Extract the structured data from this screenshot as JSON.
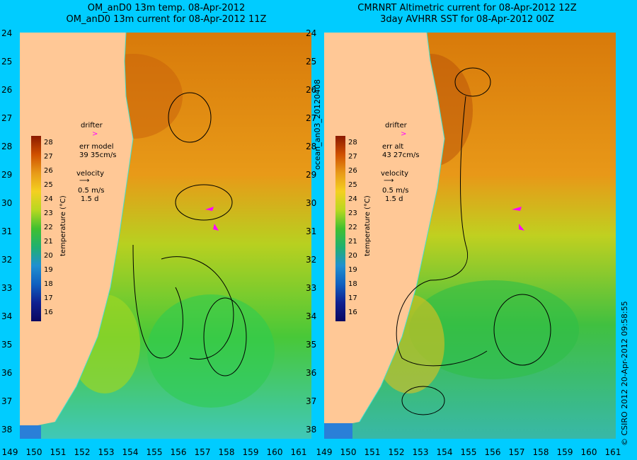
{
  "left_panel": {
    "title_line1": "OM_anD0 13m temp. 08-Apr-2012",
    "title_line2": "OM_anD0 13m current for 08-Apr-2012 11Z",
    "legend": {
      "drifter_label": "drifter",
      "err_label": "err model",
      "err_value": "39 35cm/s",
      "velocity_label": "velocity",
      "velocity_value": "0.5 m/s",
      "velocity_days": "1.5 d",
      "temp_axis_label": "temperature (°C)"
    }
  },
  "right_panel": {
    "title_line1": "CMRNRT Altimetric current for 08-Apr-2012 12Z",
    "title_line2": "3day AVHRR SST for 08-Apr-2012 00Z",
    "legend": {
      "drifter_label": "drifter",
      "err_label": "err alt",
      "err_value": "43 27cm/s",
      "velocity_label": "velocity",
      "velocity_value": "0.5 m/s",
      "velocity_days": "1.5 d",
      "temp_axis_label": "temperature (°C)"
    }
  },
  "side_text": {
    "middle": "ocean_an03_20120408",
    "right": "© CSIRO 2012   20-Apr-2012 09:58:55"
  },
  "colorbar_ticks": [
    "28",
    "27",
    "26",
    "25",
    "24",
    "23",
    "22",
    "21",
    "20",
    "19",
    "18",
    "17",
    "16"
  ],
  "latitude_ticks": [
    "24",
    "25",
    "26",
    "27",
    "28",
    "29",
    "30",
    "31",
    "32",
    "33",
    "34",
    "35",
    "36",
    "37",
    "38"
  ],
  "longitude_ticks": [
    "149",
    "150",
    "151",
    "152",
    "153",
    "154",
    "155",
    "156",
    "157",
    "158",
    "159",
    "160",
    "161"
  ],
  "colors": {
    "background": "#00ccff",
    "land": "#ffc896",
    "drifter": "#ff00ff",
    "warm": "#e08a10",
    "mid": "#a8d81a",
    "cool": "#3ac9c8",
    "coast_line": "#40e0d0"
  }
}
